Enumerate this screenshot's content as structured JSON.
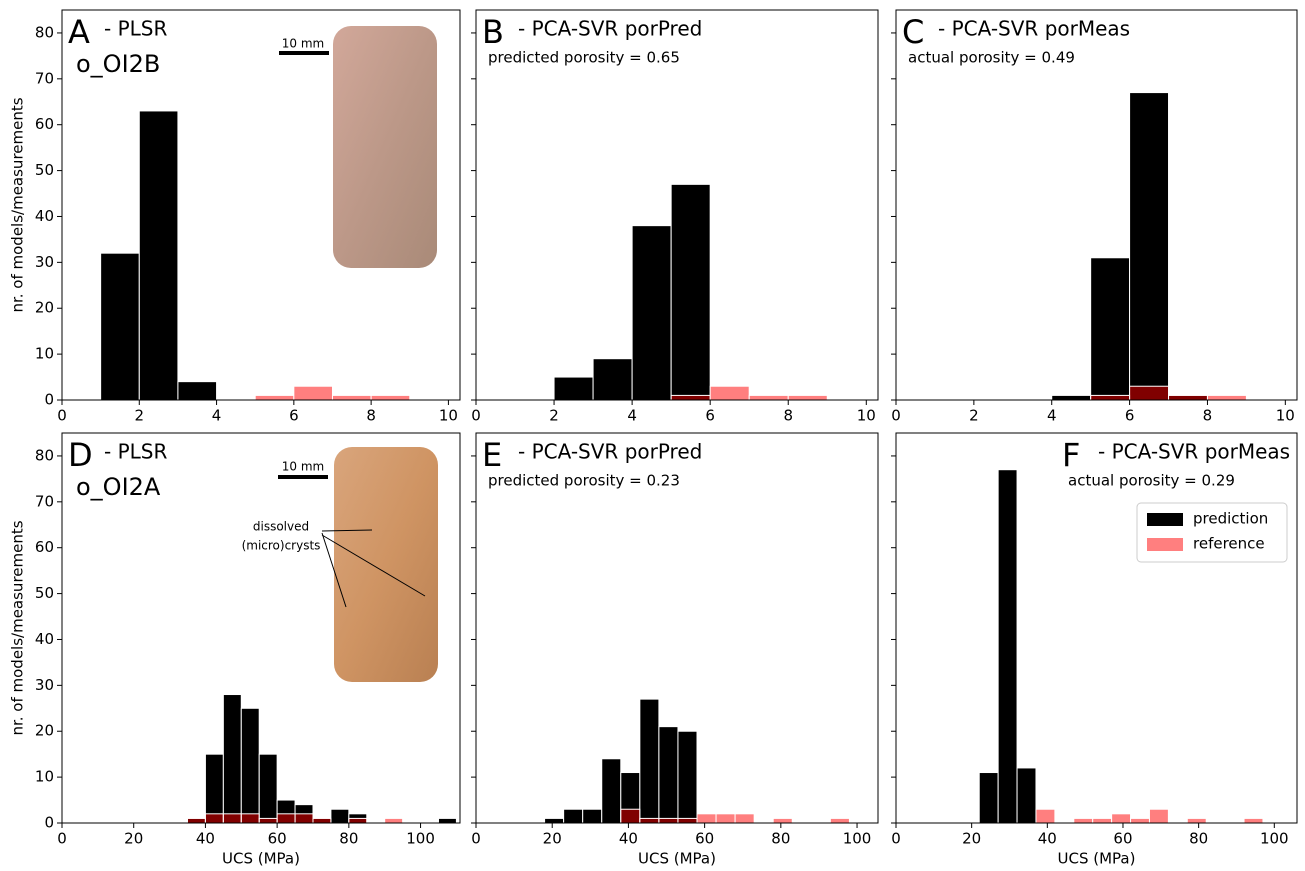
{
  "chart_data": [
    {
      "type": "histogram",
      "letter": "A",
      "title": "- PLSR",
      "sample": "o_OI2B",
      "scale_label": "10 mm",
      "bins": [
        0,
        1,
        2,
        3,
        4,
        5,
        6,
        7,
        8,
        9,
        10
      ],
      "series": [
        {
          "name": "prediction",
          "color": "#000000",
          "values": [
            0,
            32,
            63,
            4,
            0,
            0,
            0,
            0,
            0,
            0
          ]
        },
        {
          "name": "reference",
          "color": "#ff0000",
          "alpha": 0.5,
          "values": [
            0,
            0,
            0,
            0,
            0,
            1,
            3,
            1,
            1,
            0
          ]
        }
      ],
      "xlim": [
        0,
        10.3
      ],
      "xticks": [
        0,
        2,
        4,
        6,
        8,
        10
      ],
      "ylim": [
        0,
        85
      ],
      "yticks": [
        0,
        10,
        20,
        30,
        40,
        50,
        60,
        70,
        80
      ],
      "ytick_labels": true,
      "ylabel": "nr. of models/measurements"
    },
    {
      "type": "histogram",
      "letter": "B",
      "title": "- PCA-SVR porPred",
      "subtitle": "predicted porosity = 0.65",
      "bins": [
        0,
        1,
        2,
        3,
        4,
        5,
        6,
        7,
        8,
        9,
        10
      ],
      "series": [
        {
          "name": "prediction",
          "color": "#000000",
          "values": [
            0,
            0,
            5,
            9,
            38,
            47,
            0,
            0,
            0,
            0
          ]
        },
        {
          "name": "reference",
          "color": "#ff0000",
          "alpha": 0.5,
          "values": [
            0,
            0,
            0,
            0,
            0,
            1,
            3,
            1,
            1,
            0
          ]
        }
      ],
      "xlim": [
        0,
        10.3
      ],
      "xticks": [
        0,
        2,
        4,
        6,
        8,
        10
      ],
      "ylim": [
        0,
        85
      ],
      "yticks": [
        0,
        10,
        20,
        30,
        40,
        50,
        60,
        70,
        80
      ],
      "ytick_labels": false
    },
    {
      "type": "histogram",
      "letter": "C",
      "title": "- PCA-SVR porMeas",
      "subtitle": "actual porosity = 0.49",
      "bins": [
        0,
        1,
        2,
        3,
        4,
        5,
        6,
        7,
        8,
        9,
        10
      ],
      "series": [
        {
          "name": "prediction",
          "color": "#000000",
          "values": [
            0,
            0,
            0,
            0,
            1,
            31,
            67,
            1,
            0,
            0
          ]
        },
        {
          "name": "reference",
          "color": "#ff0000",
          "alpha": 0.5,
          "values": [
            0,
            0,
            0,
            0,
            0,
            1,
            3,
            1,
            1,
            0
          ]
        }
      ],
      "xlim": [
        0,
        10.3
      ],
      "xticks": [
        0,
        2,
        4,
        6,
        8,
        10
      ],
      "ylim": [
        0,
        85
      ],
      "yticks": [
        0,
        10,
        20,
        30,
        40,
        50,
        60,
        70,
        80
      ],
      "ytick_labels": false
    },
    {
      "type": "histogram",
      "letter": "D",
      "title": "- PLSR",
      "sample": "o_OI2A",
      "scale_label": "10 mm",
      "annotation": [
        "dissolved",
        "(micro)crysts"
      ],
      "bins": [
        35,
        40,
        45,
        50,
        55,
        60,
        65,
        70,
        75,
        80,
        85,
        90,
        95,
        100,
        105,
        110
      ],
      "series": [
        {
          "name": "prediction",
          "color": "#000000",
          "values": [
            1,
            15,
            28,
            25,
            15,
            5,
            4,
            1,
            3,
            2,
            0,
            0,
            0,
            0,
            1
          ]
        },
        {
          "name": "reference",
          "color": "#ff0000",
          "alpha": 0.5,
          "values": [
            1,
            2,
            2,
            2,
            1,
            2,
            2,
            1,
            0,
            1,
            0,
            1,
            0,
            0,
            0
          ]
        }
      ],
      "xlim": [
        0,
        111
      ],
      "xticks": [
        0,
        20,
        40,
        60,
        80,
        100
      ],
      "ylim": [
        0,
        85
      ],
      "yticks": [
        0,
        10,
        20,
        30,
        40,
        50,
        60,
        70,
        80
      ],
      "ytick_labels": true,
      "ylabel": "nr. of models/measurements",
      "xlabel": "UCS (MPa)"
    },
    {
      "type": "histogram",
      "letter": "E",
      "title": "- PCA-SVR porPred",
      "subtitle": "predicted porosity = 0.23",
      "bins": [
        18,
        23,
        28,
        33,
        38,
        43,
        48,
        53,
        58,
        63,
        68,
        73,
        78,
        83,
        88,
        93,
        98
      ],
      "series": [
        {
          "name": "prediction",
          "color": "#000000",
          "values": [
            1,
            3,
            3,
            14,
            11,
            27,
            21,
            20,
            0,
            0,
            0,
            0,
            0,
            0,
            0,
            0
          ]
        },
        {
          "name": "reference",
          "color": "#ff0000",
          "alpha": 0.5,
          "values": [
            0,
            0,
            0,
            0,
            3,
            1,
            1,
            1,
            2,
            2,
            2,
            0,
            1,
            0,
            0,
            1
          ]
        }
      ],
      "xlim": [
        0,
        105.5
      ],
      "xticks": [
        0,
        20,
        40,
        60,
        80,
        100
      ],
      "ylim": [
        0,
        85
      ],
      "yticks": [
        0,
        10,
        20,
        30,
        40,
        50,
        60,
        70,
        80
      ],
      "ytick_labels": false,
      "xlabel": "UCS (MPa)"
    },
    {
      "type": "histogram",
      "letter": "F",
      "title": "- PCA-SVR porMeas",
      "subtitle": "actual porosity = 0.29",
      "bins": [
        22,
        27,
        32,
        37,
        42,
        47,
        52,
        57,
        62,
        67,
        72,
        77,
        82,
        87,
        92,
        97
      ],
      "series": [
        {
          "name": "prediction",
          "color": "#000000",
          "values": [
            11,
            77,
            12,
            0,
            0,
            0,
            0,
            0,
            0,
            0,
            0,
            0,
            0,
            0,
            0
          ]
        },
        {
          "name": "reference",
          "color": "#ff0000",
          "alpha": 0.5,
          "values": [
            0,
            0,
            0,
            3,
            0,
            1,
            1,
            2,
            1,
            3,
            0,
            1,
            0,
            0,
            1
          ]
        }
      ],
      "xlim": [
        0,
        106
      ],
      "xticks": [
        0,
        20,
        40,
        60,
        80,
        100
      ],
      "ylim": [
        0,
        85
      ],
      "yticks": [
        0,
        10,
        20,
        30,
        40,
        50,
        60,
        70,
        80
      ],
      "ytick_labels": false,
      "xlabel": "UCS (MPa)",
      "legend": "upper right"
    }
  ]
}
